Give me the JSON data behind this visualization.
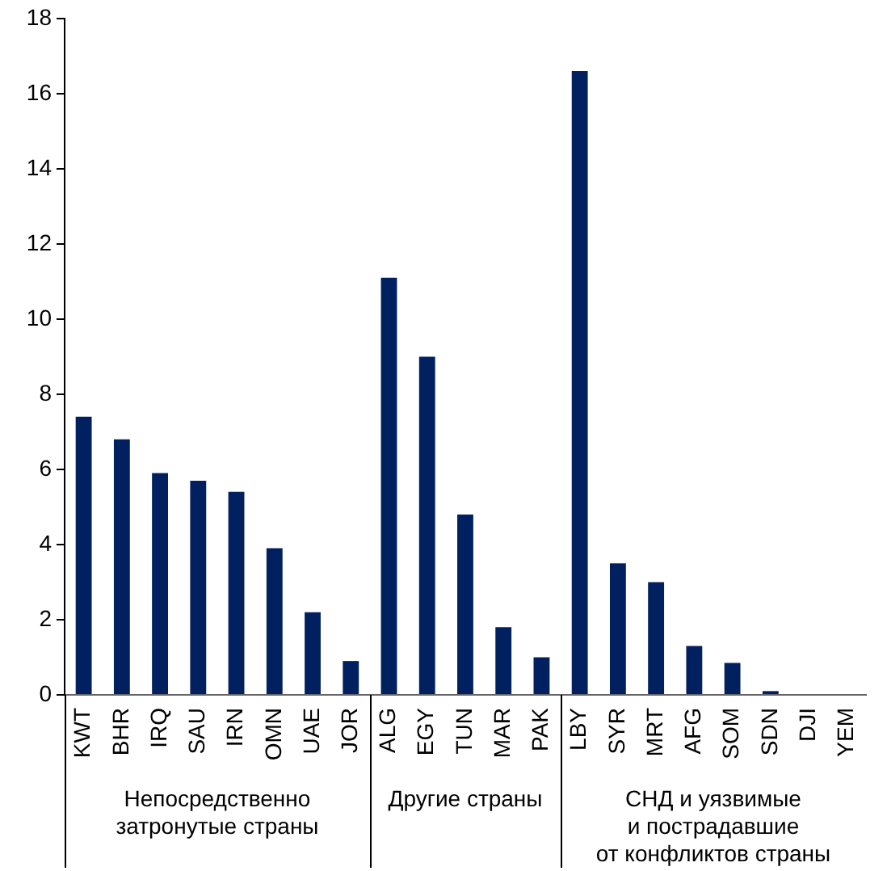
{
  "chart_data": {
    "type": "bar",
    "categories": [
      "KWT",
      "BHR",
      "IRQ",
      "SAU",
      "IRN",
      "OMN",
      "UAE",
      "JOR",
      "ALG",
      "EGY",
      "TUN",
      "MAR",
      "PAK",
      "LBY",
      "SYR",
      "MRT",
      "AFG",
      "SOM",
      "SDN",
      "DJI",
      "YEM"
    ],
    "values": [
      7.4,
      6.8,
      5.9,
      5.7,
      5.4,
      3.9,
      2.2,
      0.9,
      11.1,
      9.0,
      4.8,
      1.8,
      1.0,
      16.6,
      3.5,
      3.0,
      1.3,
      0.85,
      0.1,
      0,
      0
    ],
    "color": "#002060",
    "ylim": [
      0,
      18
    ],
    "yticks": [
      0,
      2,
      4,
      6,
      8,
      10,
      12,
      14,
      16,
      18
    ],
    "grid": false,
    "legend": false,
    "annotations": [
      "Непосредственно\nзатронутые страны",
      "Другие страны",
      "СНД и уязвимые\nи пострадавшие\nот конфликтов страны"
    ]
  }
}
